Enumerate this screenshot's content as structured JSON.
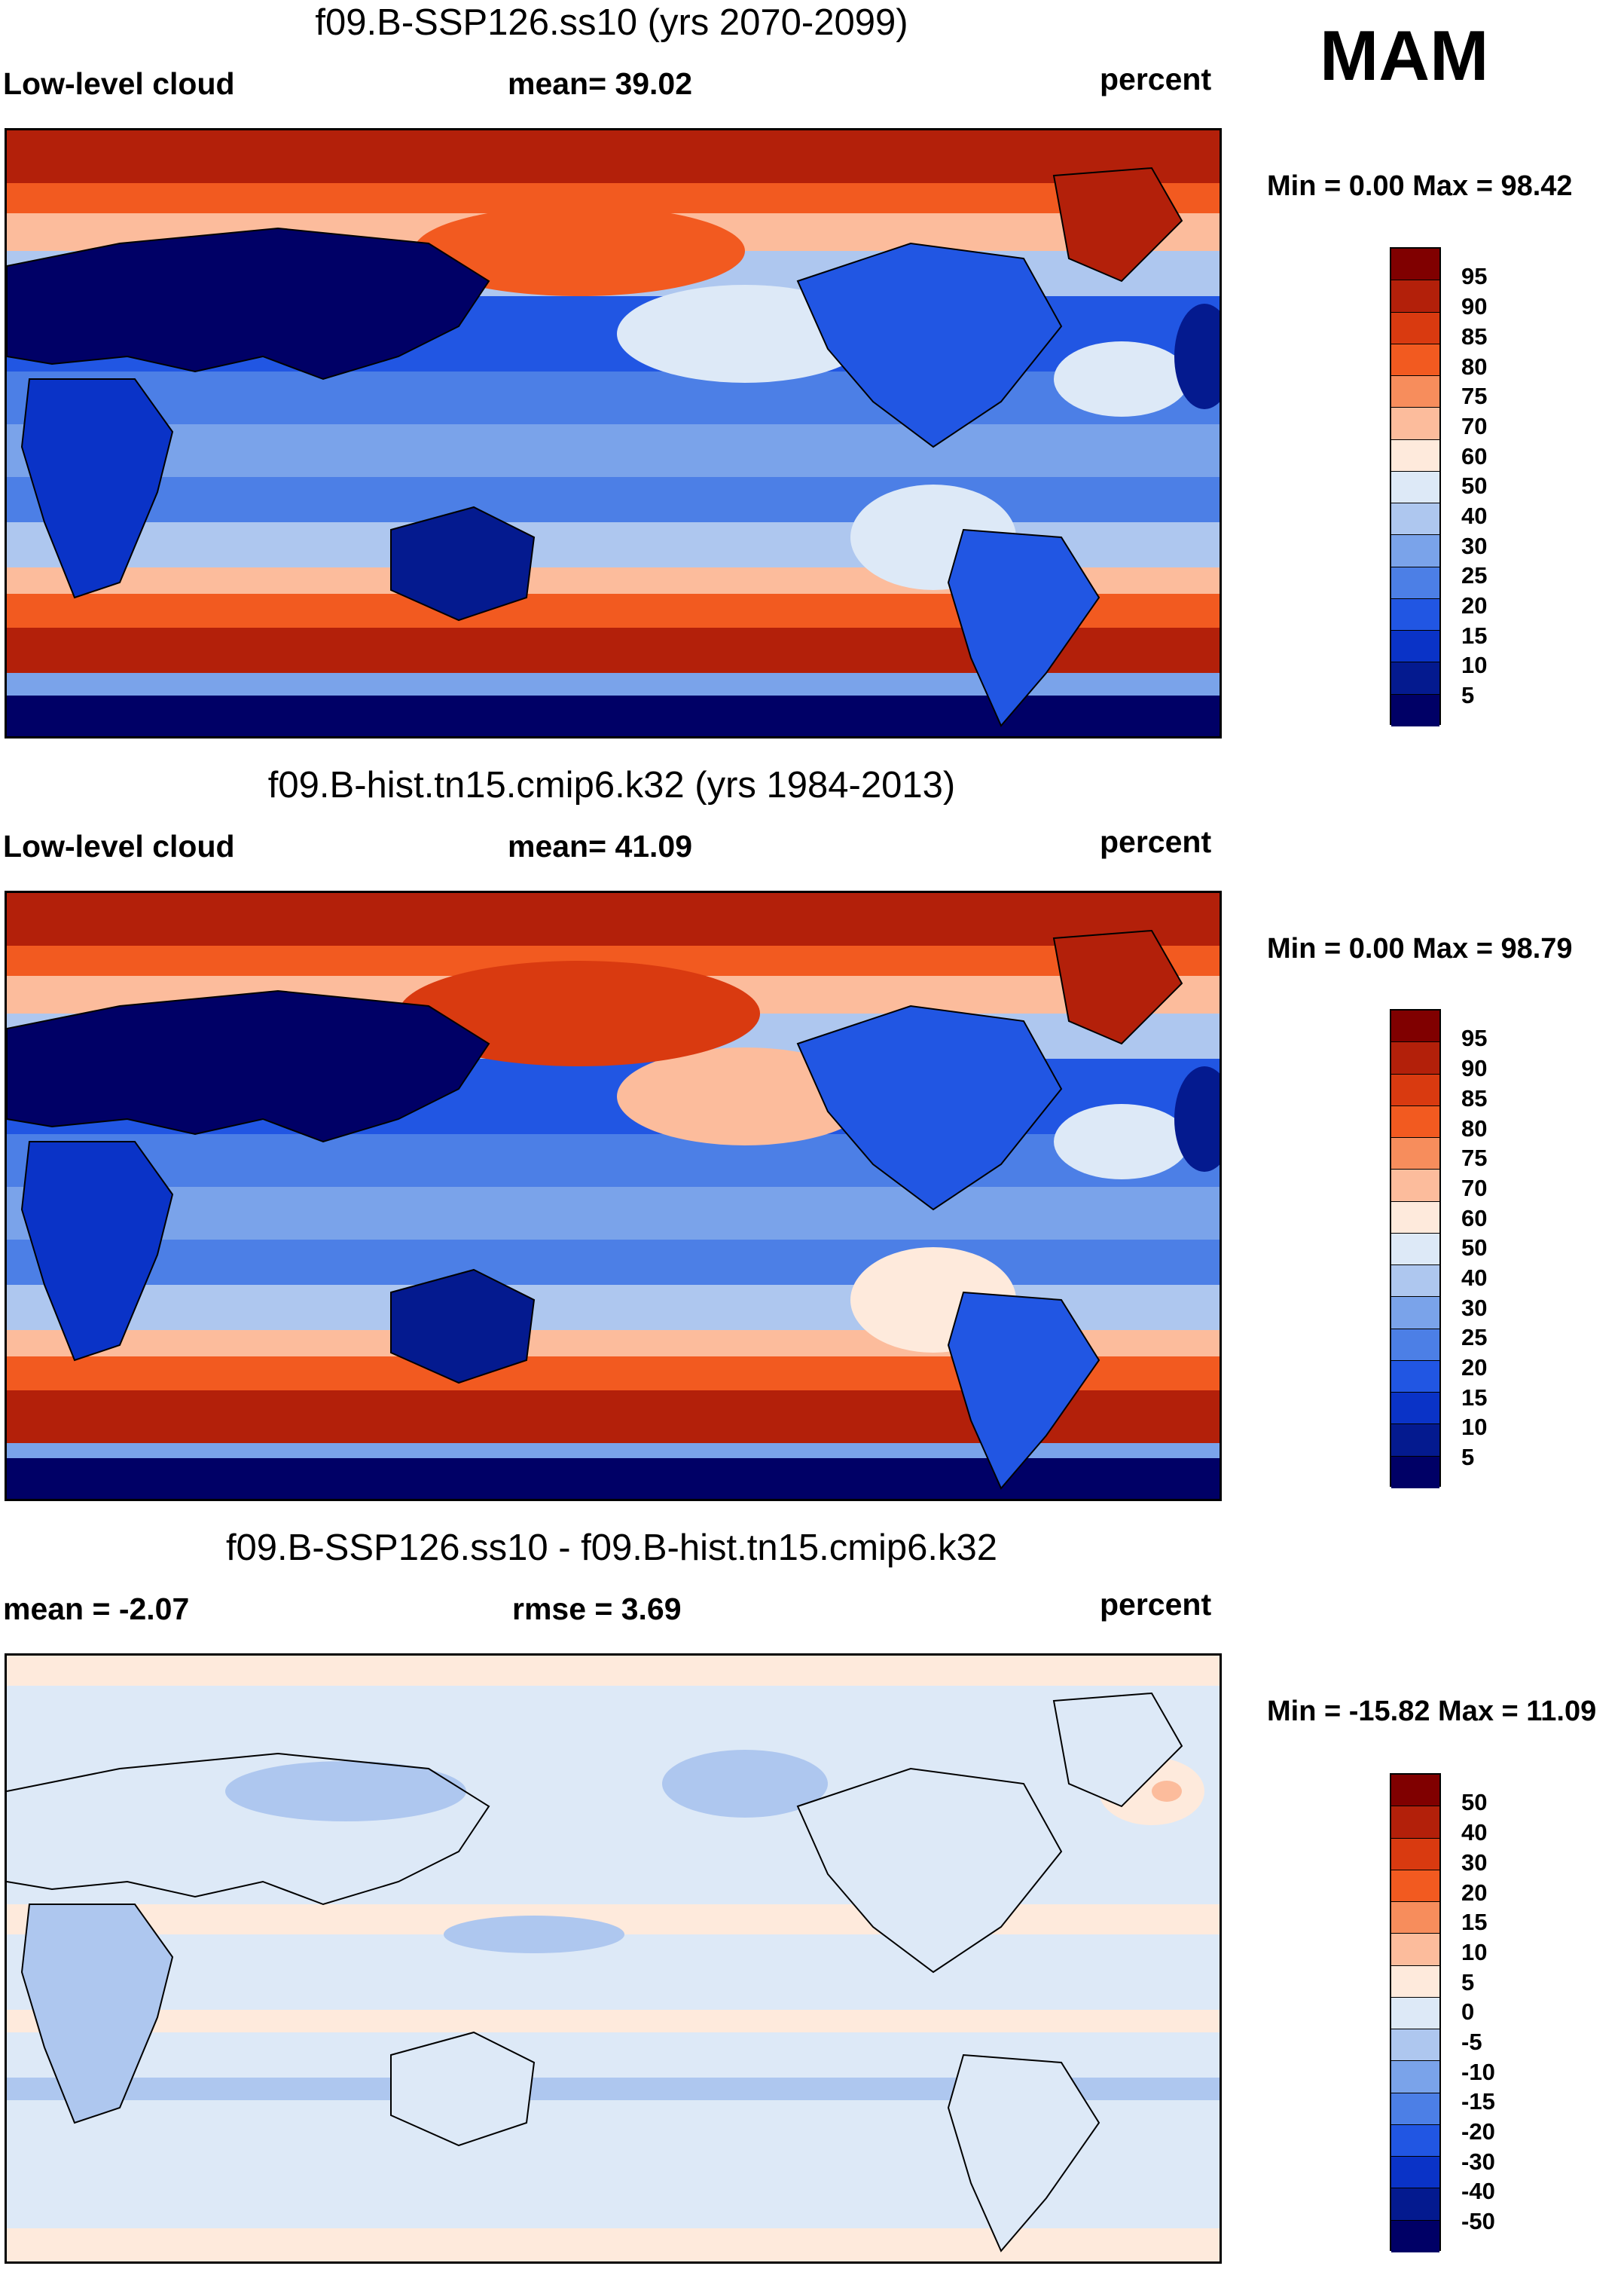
{
  "season": "MAM",
  "panels": [
    {
      "id": "future",
      "title": "f09.B-SSP126.ss10 (yrs 2070-2099)",
      "left_label": "Low-level cloud",
      "center_label": "mean=  39.02",
      "right_label": "percent",
      "minmax": "Min =   0.00 Max =  98.42",
      "colorbar": {
        "colors": [
          "#800000",
          "#b3200a",
          "#d93a10",
          "#f25a20",
          "#f78d5c",
          "#fcbc9c",
          "#feeadc",
          "#dde9f7",
          "#aec7ef",
          "#7aa3ea",
          "#4c7fe6",
          "#2156e3",
          "#0a33c7",
          "#041a8f",
          "#000066"
        ],
        "labels": [
          "95",
          "90",
          "85",
          "80",
          "75",
          "70",
          "60",
          "50",
          "40",
          "30",
          "25",
          "20",
          "15",
          "10",
          "5"
        ]
      }
    },
    {
      "id": "historical",
      "title": "f09.B-hist.tn15.cmip6.k32 (yrs 1984-2013)",
      "left_label": "Low-level cloud",
      "center_label": "mean=  41.09",
      "right_label": "percent",
      "minmax": "Min =   0.00 Max =  98.79",
      "colorbar": {
        "colors": [
          "#800000",
          "#b3200a",
          "#d93a10",
          "#f25a20",
          "#f78d5c",
          "#fcbc9c",
          "#feeadc",
          "#dde9f7",
          "#aec7ef",
          "#7aa3ea",
          "#4c7fe6",
          "#2156e3",
          "#0a33c7",
          "#041a8f",
          "#000066"
        ],
        "labels": [
          "95",
          "90",
          "85",
          "80",
          "75",
          "70",
          "60",
          "50",
          "40",
          "30",
          "25",
          "20",
          "15",
          "10",
          "5"
        ]
      }
    },
    {
      "id": "difference",
      "title": "f09.B-SSP126.ss10 - f09.B-hist.tn15.cmip6.k32",
      "left_label": "mean =  -2.07",
      "center_label": "rmse =   3.69",
      "right_label": "percent",
      "minmax": "Min = -15.82 Max =  11.09",
      "colorbar": {
        "colors": [
          "#800000",
          "#b3200a",
          "#d93a10",
          "#f25a20",
          "#f78d5c",
          "#fcbc9c",
          "#feeadc",
          "#dde9f7",
          "#aec7ef",
          "#7aa3ea",
          "#4c7fe6",
          "#2156e3",
          "#0a33c7",
          "#041a8f",
          "#000066"
        ],
        "labels": [
          "50",
          "40",
          "30",
          "20",
          "15",
          "10",
          "5",
          "0",
          "-5",
          "-10",
          "-15",
          "-20",
          "-30",
          "-40",
          "-50"
        ]
      }
    }
  ]
}
